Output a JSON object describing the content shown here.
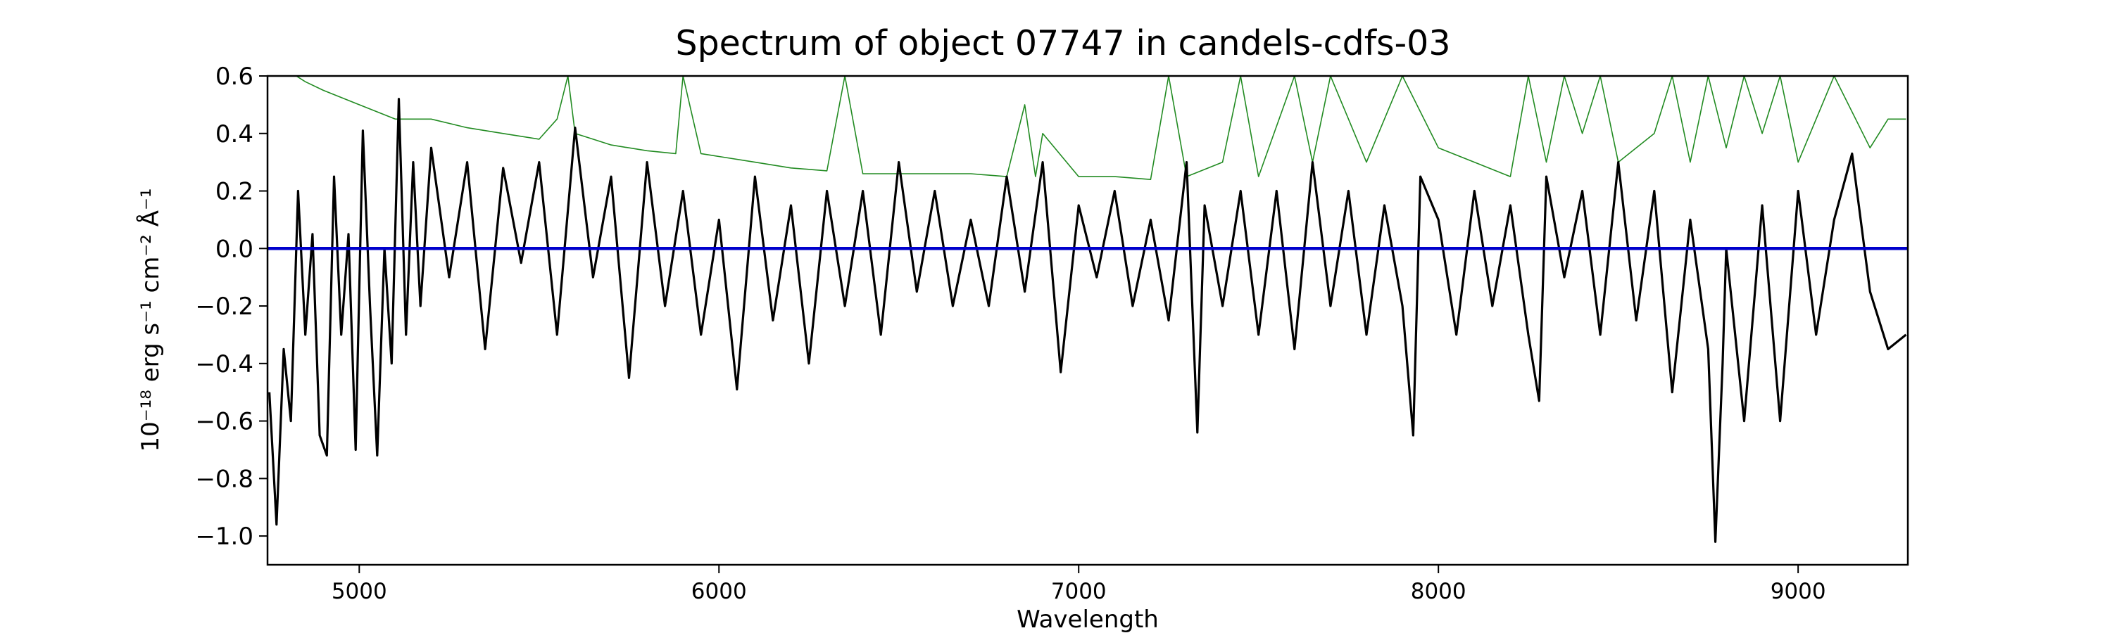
{
  "chart_data": {
    "type": "line",
    "title": "Spectrum of object 07747 in candels-cdfs-03",
    "xlabel": "Wavelength",
    "ylabel": "10⁻¹⁸ erg s⁻¹ cm⁻² Å⁻¹",
    "xlim": [
      4745,
      9305
    ],
    "ylim": [
      -1.1,
      0.6
    ],
    "xticks": [
      5000,
      6000,
      7000,
      8000,
      9000
    ],
    "yticks": [
      0.6,
      0.4,
      0.2,
      0.0,
      -0.2,
      -0.4,
      -0.6,
      -0.8,
      -1.0
    ],
    "ytick_labels": [
      "0.6",
      "0.4",
      "0.2",
      "0.0",
      "−0.2",
      "−0.4",
      "−0.6",
      "−0.8",
      "−1.0"
    ],
    "grid": false,
    "colors": {
      "flux": "#000000",
      "error": "#228b22",
      "zero": "#0000cc"
    },
    "series": [
      {
        "role": "flux",
        "x": [
          4750,
          4770,
          4790,
          4810,
          4830,
          4850,
          4870,
          4890,
          4910,
          4930,
          4950,
          4970,
          4990,
          5010,
          5030,
          5050,
          5070,
          5090,
          5110,
          5130,
          5150,
          5170,
          5200,
          5250,
          5300,
          5350,
          5400,
          5450,
          5500,
          5550,
          5600,
          5650,
          5700,
          5750,
          5800,
          5850,
          5900,
          5950,
          6000,
          6050,
          6100,
          6150,
          6200,
          6250,
          6300,
          6350,
          6400,
          6450,
          6500,
          6550,
          6600,
          6650,
          6700,
          6750,
          6800,
          6850,
          6900,
          6950,
          7000,
          7050,
          7100,
          7150,
          7200,
          7250,
          7300,
          7330,
          7350,
          7400,
          7450,
          7500,
          7550,
          7600,
          7650,
          7700,
          7750,
          7800,
          7850,
          7900,
          7930,
          7950,
          8000,
          8050,
          8100,
          8150,
          8200,
          8250,
          8280,
          8300,
          8350,
          8400,
          8450,
          8500,
          8550,
          8600,
          8650,
          8700,
          8750,
          8770,
          8790,
          8800,
          8850,
          8900,
          8950,
          9000,
          9050,
          9100,
          9150,
          9200,
          9250,
          9300
        ],
        "values": [
          -0.5,
          -0.96,
          -0.35,
          -0.6,
          0.2,
          -0.3,
          0.05,
          -0.65,
          -0.72,
          0.25,
          -0.3,
          0.05,
          -0.7,
          0.41,
          -0.2,
          -0.72,
          0.0,
          -0.4,
          0.52,
          -0.3,
          0.3,
          -0.2,
          0.35,
          -0.1,
          0.3,
          -0.35,
          0.28,
          -0.05,
          0.3,
          -0.3,
          0.42,
          -0.1,
          0.25,
          -0.45,
          0.3,
          -0.2,
          0.2,
          -0.3,
          0.1,
          -0.49,
          0.25,
          -0.25,
          0.15,
          -0.4,
          0.2,
          -0.2,
          0.2,
          -0.3,
          0.3,
          -0.15,
          0.2,
          -0.2,
          0.1,
          -0.2,
          0.25,
          -0.15,
          0.3,
          -0.43,
          0.15,
          -0.1,
          0.2,
          -0.2,
          0.1,
          -0.25,
          0.3,
          -0.64,
          0.15,
          -0.2,
          0.2,
          -0.3,
          0.2,
          -0.35,
          0.3,
          -0.2,
          0.2,
          -0.3,
          0.15,
          -0.2,
          -0.65,
          0.25,
          0.1,
          -0.3,
          0.2,
          -0.2,
          0.15,
          -0.3,
          -0.53,
          0.25,
          -0.1,
          0.2,
          -0.3,
          0.3,
          -0.25,
          0.2,
          -0.5,
          0.1,
          -0.35,
          -1.02,
          -0.4,
          0.0,
          -0.6,
          0.15,
          -0.6,
          0.2,
          -0.3,
          0.1,
          0.33,
          -0.15,
          -0.35,
          -0.3
        ]
      },
      {
        "role": "error",
        "x": [
          4750,
          4800,
          4850,
          4900,
          5000,
          5100,
          5200,
          5300,
          5400,
          5500,
          5550,
          5580,
          5600,
          5650,
          5700,
          5800,
          5880,
          5900,
          5950,
          6000,
          6100,
          6200,
          6300,
          6350,
          6400,
          6500,
          6600,
          6700,
          6800,
          6850,
          6880,
          6900,
          7000,
          7100,
          7200,
          7250,
          7300,
          7400,
          7450,
          7500,
          7600,
          7650,
          7700,
          7800,
          7900,
          8000,
          8100,
          8200,
          8250,
          8300,
          8350,
          8400,
          8450,
          8500,
          8600,
          8650,
          8700,
          8750,
          8800,
          8850,
          8900,
          8950,
          9000,
          9100,
          9200,
          9250,
          9300
        ],
        "values": [
          0.6,
          0.62,
          0.58,
          0.55,
          0.5,
          0.45,
          0.45,
          0.42,
          0.4,
          0.38,
          0.45,
          0.6,
          0.4,
          0.38,
          0.36,
          0.34,
          0.33,
          0.6,
          0.33,
          0.32,
          0.3,
          0.28,
          0.27,
          0.6,
          0.26,
          0.26,
          0.26,
          0.26,
          0.25,
          0.5,
          0.25,
          0.4,
          0.25,
          0.25,
          0.24,
          0.6,
          0.25,
          0.3,
          0.6,
          0.25,
          0.6,
          0.3,
          0.6,
          0.3,
          0.6,
          0.35,
          0.3,
          0.25,
          0.6,
          0.3,
          0.6,
          0.4,
          0.6,
          0.3,
          0.4,
          0.6,
          0.3,
          0.6,
          0.35,
          0.6,
          0.4,
          0.6,
          0.3,
          0.6,
          0.35,
          0.45,
          0.45
        ]
      },
      {
        "role": "zero",
        "x": [
          4745,
          9305
        ],
        "values": [
          0.0,
          0.0
        ]
      }
    ]
  }
}
